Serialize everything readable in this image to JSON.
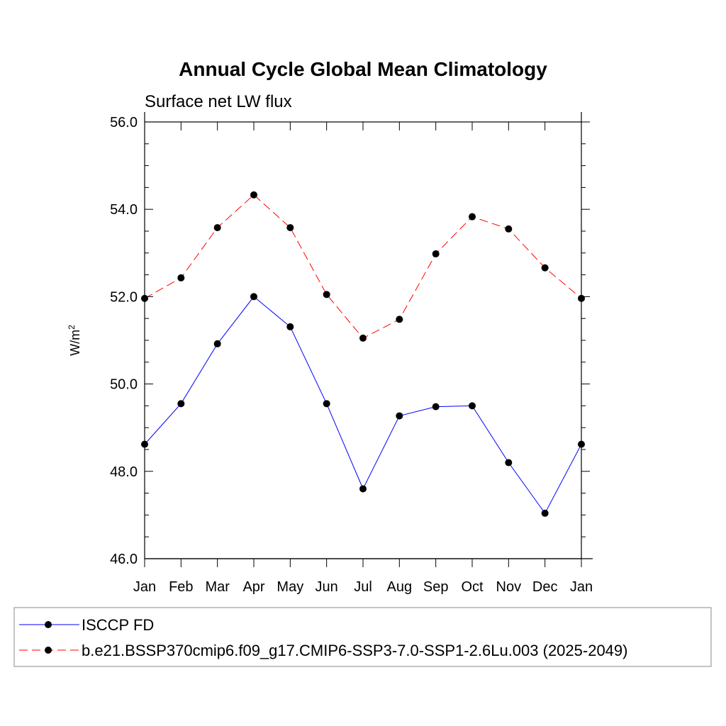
{
  "chart_data": {
    "type": "line",
    "title": "Annual Cycle Global Mean Climatology",
    "subtitle": "Surface net LW flux",
    "xlabel": "",
    "ylabel": "W/m",
    "ylabel_superscript": "2",
    "ylim": [
      46.0,
      56.0
    ],
    "y_ticks": [
      "46.0",
      "48.0",
      "50.0",
      "52.0",
      "54.0",
      "56.0"
    ],
    "categories": [
      "Jan",
      "Feb",
      "Mar",
      "Apr",
      "May",
      "Jun",
      "Jul",
      "Aug",
      "Sep",
      "Oct",
      "Nov",
      "Dec",
      "Jan"
    ],
    "grid": false,
    "legend_position": "bottom",
    "series": [
      {
        "name": "ISCCP FD",
        "color": "#0000ff",
        "dash": "solid",
        "values": [
          48.62,
          49.55,
          50.92,
          52.0,
          51.31,
          49.55,
          47.6,
          49.27,
          49.48,
          49.5,
          48.2,
          47.04,
          48.62
        ]
      },
      {
        "name": "b.e21.BSSP370cmip6.f09_g17.CMIP6-SSP3-7.0-SSP1-2.6Lu.003 (2025-2049)",
        "color": "#ff0000",
        "dash": "dashed",
        "values": [
          51.96,
          52.43,
          53.58,
          54.33,
          53.58,
          52.05,
          51.05,
          51.48,
          52.98,
          53.83,
          53.55,
          52.66,
          51.96
        ]
      }
    ]
  }
}
